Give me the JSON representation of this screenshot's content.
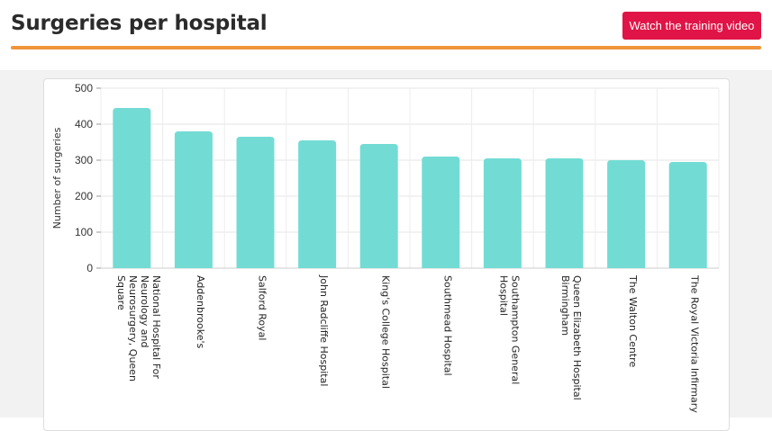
{
  "header": {
    "title": "Surgeries per hospital",
    "video_button_label": "Watch the training video"
  },
  "colors": {
    "accent_line": "#f0953a",
    "button": "#e01446",
    "bar": "#72dcd4"
  },
  "chart_data": {
    "type": "bar",
    "title": "",
    "xlabel": "",
    "ylabel": "Number of surgeries",
    "ylim": [
      0,
      500
    ],
    "yticks": [
      0,
      100,
      200,
      300,
      400,
      500
    ],
    "grid": true,
    "categories": [
      "National Hospital For Neurology and Neurosurgery, Queen Square",
      "Addenbrooke's",
      "Salford Royal",
      "John Radcliffe Hospital",
      "King's College Hospital",
      "Southmead Hospital",
      "Southampton General Hospital",
      "Queen Elizabeth Hospital Birmingham",
      "The Walton Centre",
      "The Royal Victoria Infirmary"
    ],
    "category_lines": [
      [
        "National Hospital For",
        "Neurology and",
        "Neurosurgery, Queen",
        "Square"
      ],
      [
        "Addenbrooke's"
      ],
      [
        "Salford Royal"
      ],
      [
        "John Radcliffe Hospital"
      ],
      [
        "King's College Hospital"
      ],
      [
        "Southmead Hospital"
      ],
      [
        "Southampton General",
        "Hospital"
      ],
      [
        "Queen Elizabeth Hospital",
        "Birmingham"
      ],
      [
        "The Walton Centre"
      ],
      [
        "The Royal Victoria Infirmary"
      ]
    ],
    "values": [
      445,
      380,
      365,
      355,
      345,
      310,
      305,
      305,
      300,
      295
    ]
  }
}
